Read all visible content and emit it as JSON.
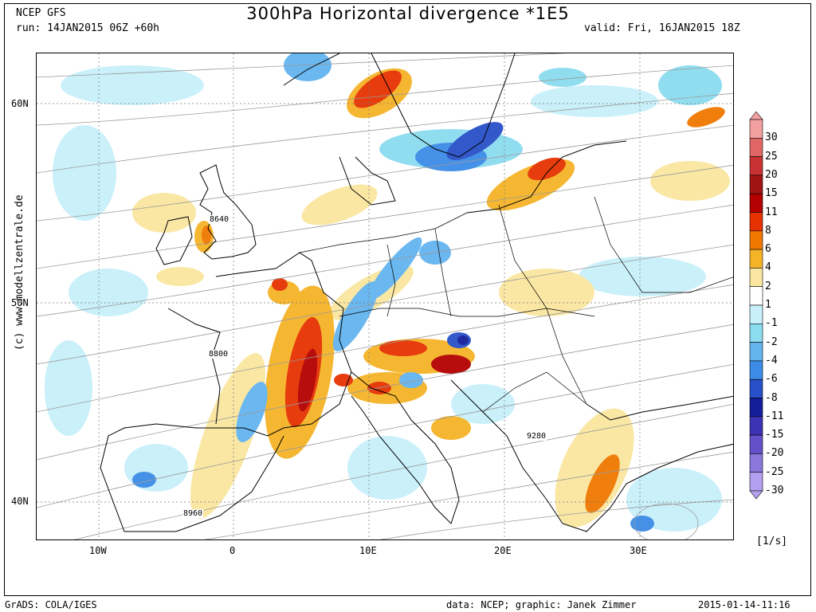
{
  "header": {
    "model": "NCEP GFS",
    "run": "run: 14JAN2015 06Z +60h",
    "title": "300hPa Horizontal divergence *1E5",
    "valid": "valid: Fri, 16JAN2015 18Z"
  },
  "side_credit": "(c) www.modellzentrale.de",
  "axes": {
    "lat_labels": [
      "60N",
      "50N",
      "40N"
    ],
    "lon_labels": [
      "10W",
      "0",
      "10E",
      "20E",
      "30E"
    ]
  },
  "colorbar": {
    "labels": [
      "30",
      "25",
      "20",
      "15",
      "11",
      "8",
      "6",
      "4",
      "2",
      "1",
      "-1",
      "-2",
      "-4",
      "-6",
      "-8",
      "-11",
      "-15",
      "-20",
      "-25",
      "-30"
    ],
    "colors": [
      "#f2a0a0",
      "#e06666",
      "#c83232",
      "#a01414",
      "#b40000",
      "#e63200",
      "#f07800",
      "#f5b428",
      "#fae6a0",
      "#ffffff",
      "#c8f0fa",
      "#8cdcf0",
      "#64b4f0",
      "#3c8ce6",
      "#2850c8",
      "#141e9b",
      "#3c32b4",
      "#6450c8",
      "#8c78dc",
      "#b4a0f0"
    ],
    "unit": "[1/s]"
  },
  "contour_labels": [
    "8640",
    "8800",
    "8960",
    "9280"
  ],
  "footer": {
    "left": "GrADS: COLA/IGES",
    "center": "data: NCEP; graphic: Janek Zimmer",
    "right": "2015-01-14-11:16"
  }
}
